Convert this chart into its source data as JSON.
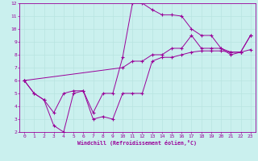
{
  "xlabel": "Windchill (Refroidissement éolien,°C)",
  "bg_color": "#caf0ee",
  "line_color": "#990099",
  "grid_color": "#b8e4e0",
  "xlim": [
    -0.5,
    23.5
  ],
  "ylim": [
    2,
    12
  ],
  "xticks": [
    0,
    1,
    2,
    3,
    4,
    5,
    6,
    7,
    8,
    9,
    10,
    11,
    12,
    13,
    14,
    15,
    16,
    17,
    18,
    19,
    20,
    21,
    22,
    23
  ],
  "yticks": [
    2,
    3,
    4,
    5,
    6,
    7,
    8,
    9,
    10,
    11,
    12
  ],
  "series1_x": [
    0,
    1,
    2,
    3,
    4,
    5,
    6,
    7,
    8,
    9,
    10,
    11,
    12,
    13,
    14,
    15,
    16,
    17,
    18,
    19,
    20,
    21,
    22,
    23
  ],
  "series1_y": [
    6.0,
    5.0,
    4.5,
    2.5,
    2.0,
    5.0,
    5.2,
    3.0,
    3.2,
    3.0,
    5.0,
    5.0,
    5.0,
    7.5,
    7.8,
    7.8,
    8.0,
    8.2,
    8.3,
    8.3,
    8.3,
    8.2,
    8.2,
    8.4
  ],
  "series2_x": [
    0,
    1,
    2,
    3,
    4,
    5,
    6,
    7,
    8,
    9,
    10,
    11,
    12,
    13,
    14,
    15,
    16,
    17,
    18,
    19,
    20,
    21,
    22,
    23
  ],
  "series2_y": [
    6.0,
    5.0,
    4.5,
    3.5,
    5.0,
    5.2,
    5.2,
    3.5,
    5.0,
    5.0,
    7.8,
    12.0,
    12.0,
    11.5,
    11.1,
    11.1,
    11.0,
    10.0,
    9.5,
    9.5,
    8.5,
    8.0,
    8.2,
    9.5
  ],
  "series3_x": [
    0,
    10,
    11,
    12,
    13,
    14,
    15,
    16,
    17,
    18,
    19,
    20,
    21,
    22,
    23
  ],
  "series3_y": [
    6.0,
    7.0,
    7.5,
    7.5,
    8.0,
    8.0,
    8.5,
    8.5,
    9.5,
    8.5,
    8.5,
    8.5,
    8.2,
    8.2,
    9.5
  ]
}
